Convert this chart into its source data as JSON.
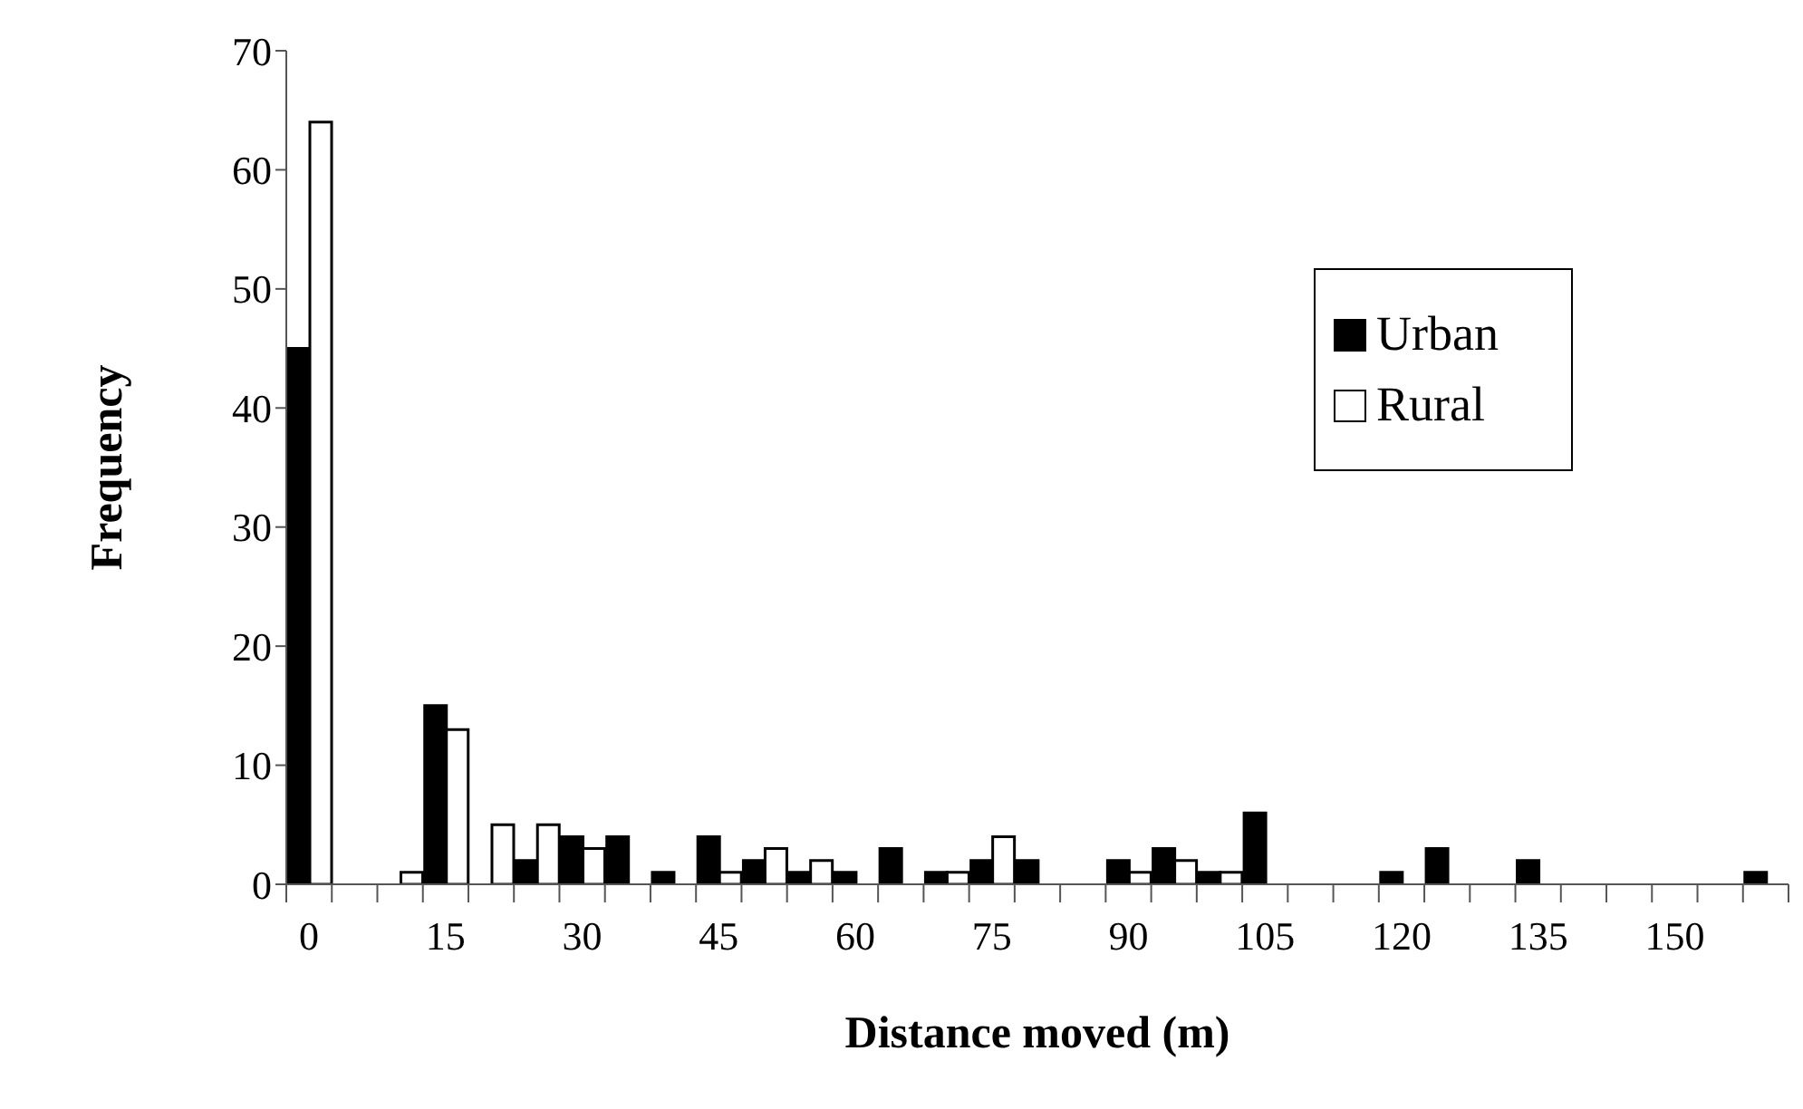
{
  "chart_data": {
    "type": "bar",
    "xlabel": "Distance moved (m)",
    "ylabel": "Frequency",
    "categories": [
      "0",
      null,
      null,
      "15",
      null,
      null,
      "30",
      null,
      null,
      "45",
      null,
      null,
      "60",
      null,
      null,
      "75",
      null,
      null,
      "90",
      null,
      null,
      "105",
      null,
      null,
      "120",
      null,
      null,
      "135",
      null,
      null,
      "150",
      null,
      null
    ],
    "series": [
      {
        "name": "Urban",
        "color": "#000000",
        "values": [
          45,
          0,
          0,
          15,
          0,
          2,
          4,
          4,
          1,
          4,
          2,
          1,
          1,
          3,
          1,
          2,
          2,
          0,
          2,
          3,
          1,
          6,
          0,
          0,
          1,
          3,
          0,
          2,
          0,
          0,
          0,
          0,
          1
        ]
      },
      {
        "name": "Rural",
        "color": "#ffffff",
        "values": [
          64,
          0,
          1,
          13,
          5,
          5,
          3,
          0,
          0,
          1,
          3,
          2,
          0,
          0,
          1,
          4,
          0,
          0,
          1,
          2,
          1,
          0,
          0,
          0,
          0,
          0,
          0,
          0,
          0,
          0,
          0,
          0,
          0
        ]
      }
    ],
    "ylim": [
      0,
      70
    ],
    "yticks": [
      0,
      10,
      20,
      30,
      40,
      50,
      60,
      70
    ],
    "grid": false,
    "legend": "top right"
  }
}
